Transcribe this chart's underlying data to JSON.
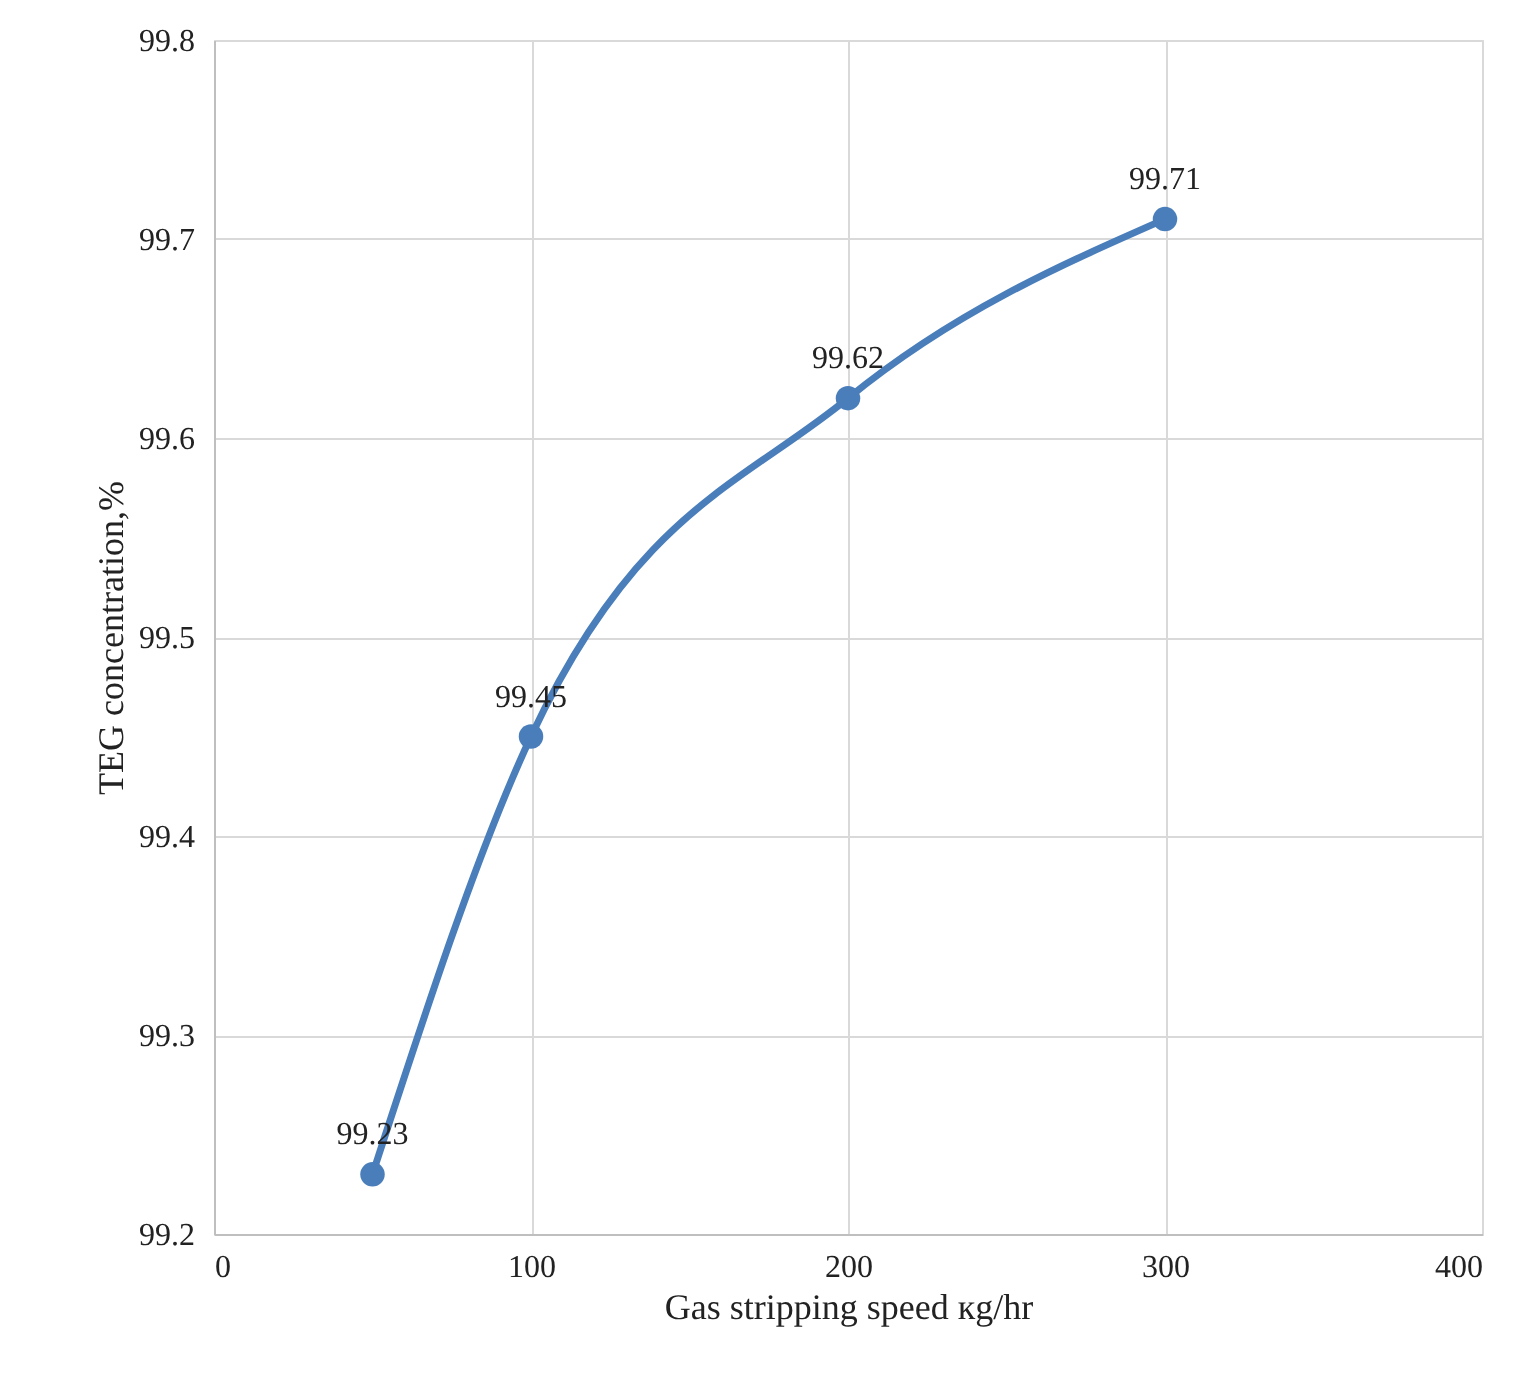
{
  "chart_data": {
    "type": "line",
    "xlabel": "Gas stripping speed кg/hr",
    "ylabel": "TEG concentration,%",
    "x": [
      50,
      100,
      200,
      300
    ],
    "series": [
      {
        "color": "#4a7ebb",
        "values": [
          99.23,
          99.45,
          99.62,
          99.71
        ]
      }
    ],
    "xlim": [
      0,
      400
    ],
    "xticks": [
      0,
      100,
      200,
      300,
      400
    ],
    "ylim": [
      99.2,
      99.8
    ],
    "yticks": [
      99.2,
      99.3,
      99.4,
      99.5,
      99.6,
      99.7,
      99.8
    ],
    "grid": true,
    "marker": "circle",
    "line_style": "solid",
    "data_labels": true
  }
}
